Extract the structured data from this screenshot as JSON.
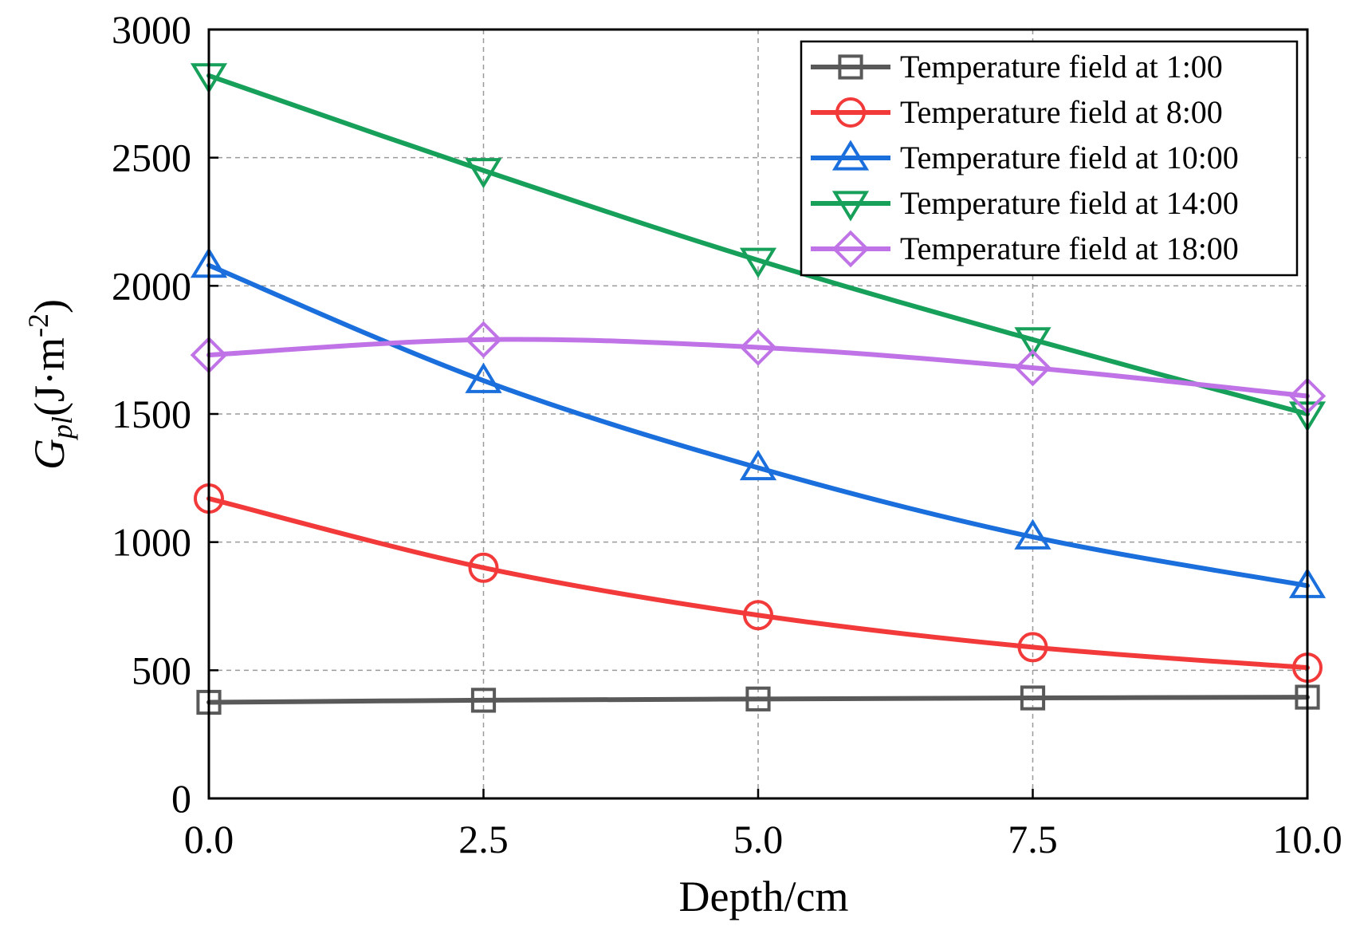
{
  "chart_data": {
    "type": "line",
    "title": "",
    "xlabel": "Depth/cm",
    "ylabel": {
      "g": "G",
      "sub": "pl",
      "unit_open": "(J·m",
      "sup": "-2",
      "unit_close": ")"
    },
    "xlim": [
      0,
      10
    ],
    "ylim": [
      0,
      3000
    ],
    "xticks": [
      0,
      2.5,
      5,
      7.5,
      10
    ],
    "xtick_labels": [
      "0.0",
      "2.5",
      "5.0",
      "7.5",
      "10.0"
    ],
    "yticks": [
      0,
      500,
      1000,
      1500,
      2000,
      2500,
      3000
    ],
    "ytick_labels": [
      "0",
      "500",
      "1000",
      "1500",
      "2000",
      "2500",
      "3000"
    ],
    "grid": true,
    "legend_position": "top-right",
    "x": [
      0,
      2.5,
      5,
      7.5,
      10
    ],
    "series": [
      {
        "name": "Temperature field at 1:00",
        "color": "#595959",
        "marker": "square",
        "values": [
          375,
          383,
          388,
          392,
          395
        ]
      },
      {
        "name": "Temperature field at 8:00",
        "color": "#f23a3a",
        "marker": "circle",
        "values": [
          1170,
          900,
          715,
          590,
          510
        ]
      },
      {
        "name": "Temperature field at 10:00",
        "color": "#1a6fdc",
        "marker": "triangle-up",
        "values": [
          2080,
          1630,
          1290,
          1020,
          830
        ]
      },
      {
        "name": "Temperature field at 14:00",
        "color": "#16a05a",
        "marker": "triangle-down",
        "values": [
          2820,
          2450,
          2100,
          1790,
          1500
        ]
      },
      {
        "name": "Temperature field at 18:00",
        "color": "#bf73e6",
        "marker": "diamond",
        "values": [
          1730,
          1790,
          1760,
          1680,
          1570
        ]
      }
    ]
  }
}
